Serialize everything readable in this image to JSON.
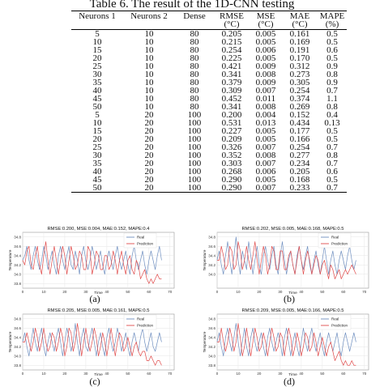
{
  "table": {
    "title": "Table 6. The result of the 1D-CNN testing",
    "headers": [
      "Neurons 1",
      "Neurons 2",
      "Dense",
      "RMSE",
      "MSE",
      "MAE",
      "MAPE"
    ],
    "units": [
      "",
      "",
      "",
      "(°C)",
      "(°C)",
      "(°C)",
      "(%)"
    ],
    "rows": [
      [
        "5",
        "10",
        "80",
        "0.205",
        "0.005",
        "0.161",
        "0.5"
      ],
      [
        "10",
        "10",
        "80",
        "0.215",
        "0.005",
        "0.169",
        "0.5"
      ],
      [
        "15",
        "10",
        "80",
        "0.254",
        "0.006",
        "0.191",
        "0.6"
      ],
      [
        "20",
        "10",
        "80",
        "0.225",
        "0.005",
        "0.170",
        "0.5"
      ],
      [
        "25",
        "10",
        "80",
        "0.421",
        "0.009",
        "0.312",
        "0.9"
      ],
      [
        "30",
        "10",
        "80",
        "0.341",
        "0.008",
        "0.273",
        "0.8"
      ],
      [
        "35",
        "10",
        "80",
        "0.379",
        "0.009",
        "0.305",
        "0.9"
      ],
      [
        "40",
        "10",
        "80",
        "0.309",
        "0.007",
        "0.254",
        "0.7"
      ],
      [
        "45",
        "10",
        "80",
        "0.452",
        "0.011",
        "0.374",
        "1.1"
      ],
      [
        "50",
        "10",
        "80",
        "0.341",
        "0.008",
        "0.269",
        "0.8"
      ],
      [
        "5",
        "20",
        "100",
        "0.200",
        "0.004",
        "0.152",
        "0.4"
      ],
      [
        "10",
        "20",
        "100",
        "0.531",
        "0.013",
        "0.434",
        "0.13"
      ],
      [
        "15",
        "20",
        "100",
        "0.227",
        "0.005",
        "0.177",
        "0.5"
      ],
      [
        "20",
        "20",
        "100",
        "0.209",
        "0.005",
        "0.166",
        "0.5"
      ],
      [
        "25",
        "20",
        "100",
        "0.326",
        "0.007",
        "0.254",
        "0.7"
      ],
      [
        "30",
        "20",
        "100",
        "0.352",
        "0.008",
        "0.277",
        "0.8"
      ],
      [
        "35",
        "20",
        "100",
        "0.303",
        "0.007",
        "0.234",
        "0.7"
      ],
      [
        "40",
        "20",
        "100",
        "0.268",
        "0.006",
        "0.205",
        "0.6"
      ],
      [
        "45",
        "20",
        "100",
        "0.290",
        "0.005",
        "0.168",
        "0.5"
      ],
      [
        "50",
        "20",
        "100",
        "0.290",
        "0.007",
        "0.233",
        "0.7"
      ]
    ]
  },
  "colors": {
    "real": "#6f8fc0",
    "prediction": "#e04a4a",
    "grid": "#e6e6e6",
    "frame": "#999999"
  },
  "chart_data": [
    {
      "type": "line",
      "label": "(a)",
      "title": "RMSE:0.200, MSE:0.004, MAE:0.152, MAPE:0.4",
      "xlabel": "Time",
      "ylabel": "Temperature",
      "xlim": [
        0,
        72
      ],
      "ylim": [
        33.7,
        34.9
      ],
      "xticks": [
        "0",
        "10",
        "20",
        "30",
        "40",
        "50",
        "60",
        "70"
      ],
      "yticks": [
        "33.8",
        "34.0",
        "34.2",
        "34.4",
        "34.6",
        "34.8"
      ],
      "legend": [
        "Real",
        "Prediction"
      ],
      "legend_position": "top-right",
      "series": [
        {
          "name": "Real",
          "values": [
            34.3,
            34.4,
            34.6,
            34.3,
            34.1,
            34.4,
            34.6,
            34.3,
            34.1,
            34.3,
            34.6,
            34.4,
            34.1,
            34.3,
            34.5,
            34.2,
            34.0,
            34.4,
            34.6,
            34.3,
            34.1,
            34.4,
            34.6,
            34.2,
            34.1,
            34.5,
            34.3,
            34.0,
            34.4,
            34.6,
            34.3,
            34.1,
            34.3,
            34.6,
            34.4,
            34.1,
            34.3,
            34.5,
            34.2,
            34.0,
            34.3,
            34.5,
            34.3,
            34.1,
            34.4,
            34.6,
            34.3,
            34.1,
            34.3,
            34.5,
            34.2,
            34.0,
            34.4,
            34.6,
            34.3,
            34.1,
            34.3,
            34.5,
            34.2,
            34.0,
            34.3,
            34.5,
            34.3,
            34.1,
            34.4,
            34.6,
            34.3
          ]
        },
        {
          "name": "Prediction",
          "values": [
            34.3,
            34.2,
            34.5,
            34.6,
            34.2,
            34.1,
            34.4,
            34.6,
            34.2,
            34.0,
            34.4,
            34.7,
            34.3,
            34.0,
            34.3,
            34.6,
            34.3,
            34.0,
            34.3,
            34.6,
            34.4,
            34.0,
            34.3,
            34.6,
            34.4,
            34.1,
            34.2,
            34.5,
            34.4,
            34.1,
            34.1,
            34.6,
            34.5,
            34.0,
            34.2,
            34.5,
            34.4,
            34.1,
            34.1,
            34.4,
            34.4,
            34.1,
            34.2,
            34.5,
            34.3,
            34.0,
            34.3,
            34.5,
            34.2,
            34.0,
            34.3,
            34.4,
            34.1,
            34.0,
            34.3,
            34.2,
            33.9,
            34.0,
            34.1,
            33.9,
            33.8,
            33.9,
            33.8,
            33.9,
            34.0,
            33.9,
            33.9
          ]
        }
      ]
    },
    {
      "type": "line",
      "label": "(b)",
      "title": "RMSE:0.202, MSE:0.005, MAE:0.168, MAPE:0.5",
      "xlabel": "Time",
      "ylabel": "Temperature",
      "xlim": [
        0,
        72
      ],
      "ylim": [
        33.7,
        34.9
      ],
      "xticks": [
        "0",
        "10",
        "20",
        "30",
        "40",
        "50",
        "60",
        "70"
      ],
      "yticks": [
        "34.0",
        "34.2",
        "34.4",
        "34.6",
        "34.8"
      ],
      "legend": [
        "Real",
        "Prediction"
      ],
      "legend_position": "top-right",
      "series": [
        {
          "name": "Real",
          "values": [
            34.3,
            34.5,
            34.2,
            34.0,
            34.4,
            34.7,
            34.3,
            34.0,
            34.4,
            34.8,
            34.3,
            34.0,
            34.5,
            34.3,
            34.1,
            34.7,
            34.4,
            34.0,
            34.3,
            34.6,
            34.2,
            34.0,
            34.4,
            34.6,
            34.3,
            34.1,
            34.4,
            34.6,
            34.2,
            34.0,
            34.4,
            34.7,
            34.3,
            34.0,
            34.3,
            34.5,
            34.2,
            34.0,
            34.4,
            34.6,
            34.3,
            34.1,
            34.4,
            34.6,
            34.2,
            34.0,
            34.3,
            34.5,
            34.2,
            34.0,
            34.3,
            34.6,
            34.3,
            34.0,
            34.3,
            34.5,
            34.2,
            34.0,
            34.3,
            34.5,
            34.3,
            34.1,
            34.4,
            34.6,
            34.3,
            34.1,
            34.3
          ]
        },
        {
          "name": "Prediction",
          "values": [
            34.3,
            34.3,
            34.6,
            34.4,
            34.1,
            34.2,
            34.6,
            34.5,
            34.1,
            34.2,
            34.7,
            34.5,
            34.1,
            34.3,
            34.6,
            34.3,
            34.1,
            34.4,
            34.7,
            34.3,
            34.0,
            34.3,
            34.6,
            34.4,
            34.0,
            34.2,
            34.6,
            34.5,
            34.1,
            34.1,
            34.5,
            34.5,
            34.1,
            34.1,
            34.4,
            34.5,
            34.2,
            34.0,
            34.3,
            34.6,
            34.3,
            34.0,
            34.3,
            34.5,
            34.3,
            34.0,
            34.2,
            34.4,
            34.3,
            34.0,
            34.2,
            34.3,
            34.1,
            33.9,
            34.2,
            34.1,
            33.9,
            34.0,
            34.1,
            33.9,
            34.0,
            34.1,
            34.0,
            34.1,
            34.2,
            34.1,
            34.0
          ]
        }
      ]
    },
    {
      "type": "line",
      "label": "(c)",
      "title": "RMSE:0.205, MSE:0.005, MAE:0.161, MAPE:0.5",
      "xlabel": "Time",
      "ylabel": "Temperature",
      "xlim": [
        0,
        72
      ],
      "ylim": [
        33.7,
        34.9
      ],
      "xticks": [
        "0",
        "10",
        "20",
        "30",
        "40",
        "50",
        "60",
        "70"
      ],
      "yticks": [
        "33.8",
        "34.0",
        "34.2",
        "34.4",
        "34.6",
        "34.8"
      ],
      "legend": [
        "Real",
        "Prediction"
      ],
      "legend_position": "top-right",
      "series": [
        {
          "name": "Real",
          "values": [
            34.3,
            34.5,
            34.2,
            34.0,
            34.3,
            34.6,
            34.3,
            34.1,
            34.4,
            34.6,
            34.2,
            34.0,
            34.3,
            34.5,
            34.3,
            34.1,
            34.4,
            34.6,
            34.3,
            34.0,
            34.3,
            34.6,
            34.4,
            34.1,
            34.3,
            34.7,
            34.3,
            34.0,
            34.4,
            34.6,
            34.2,
            34.1,
            34.4,
            34.6,
            34.3,
            34.0,
            34.3,
            34.5,
            34.2,
            34.0,
            34.4,
            34.6,
            34.3,
            34.1,
            34.3,
            34.6,
            34.4,
            34.1,
            34.3,
            34.5,
            34.2,
            34.0,
            34.3,
            34.5,
            34.3,
            34.1,
            34.4,
            34.6,
            34.3,
            34.1,
            34.3,
            34.5,
            34.2,
            34.1,
            34.3,
            34.5,
            34.3
          ]
        },
        {
          "name": "Prediction",
          "values": [
            34.3,
            34.3,
            34.5,
            34.3,
            34.1,
            34.3,
            34.6,
            34.4,
            34.1,
            34.3,
            34.6,
            34.3,
            34.1,
            34.2,
            34.5,
            34.4,
            34.1,
            34.3,
            34.6,
            34.4,
            34.0,
            34.2,
            34.6,
            34.5,
            34.1,
            34.3,
            34.7,
            34.4,
            34.0,
            34.3,
            34.6,
            34.3,
            34.1,
            34.3,
            34.6,
            34.4,
            34.0,
            34.2,
            34.5,
            34.3,
            34.0,
            34.3,
            34.6,
            34.3,
            34.0,
            34.3,
            34.5,
            34.4,
            34.1,
            34.2,
            34.4,
            34.2,
            34.0,
            34.2,
            34.3,
            34.1,
            34.0,
            34.1,
            34.1,
            33.9,
            33.9,
            34.0,
            33.9,
            33.8,
            33.9,
            33.9,
            33.8
          ]
        }
      ]
    },
    {
      "type": "line",
      "label": "(d)",
      "title": "RMSE:0.209, MSE:0.005, MAE:0.166, MAPE:0.5",
      "xlabel": "Time",
      "ylabel": "Temperature",
      "xlim": [
        0,
        72
      ],
      "ylim": [
        33.7,
        34.9
      ],
      "xticks": [
        "0",
        "10",
        "20",
        "30",
        "40",
        "50",
        "60",
        "70"
      ],
      "yticks": [
        "33.8",
        "34.0",
        "34.2",
        "34.4",
        "34.6",
        "34.8"
      ],
      "legend": [
        "Real",
        "Prediction"
      ],
      "legend_position": "top-right",
      "series": [
        {
          "name": "Real",
          "values": [
            34.3,
            34.5,
            34.2,
            34.0,
            34.4,
            34.6,
            34.3,
            34.1,
            34.4,
            34.7,
            34.3,
            34.0,
            34.3,
            34.6,
            34.2,
            34.0,
            34.4,
            34.6,
            34.3,
            34.1,
            34.3,
            34.5,
            34.2,
            34.0,
            34.4,
            34.6,
            34.3,
            34.1,
            34.3,
            34.5,
            34.3,
            34.0,
            34.4,
            34.6,
            34.3,
            34.0,
            34.3,
            34.5,
            34.2,
            34.0,
            34.3,
            34.6,
            34.3,
            34.1,
            34.4,
            34.6,
            34.3,
            34.1,
            34.3,
            34.5,
            34.2,
            34.0,
            34.3,
            34.5,
            34.3,
            34.1,
            34.3,
            34.5,
            34.2,
            34.0,
            34.3,
            34.5,
            34.3,
            34.1,
            34.3,
            34.5,
            34.3
          ]
        },
        {
          "name": "Prediction",
          "values": [
            34.3,
            34.3,
            34.6,
            34.3,
            34.1,
            34.3,
            34.6,
            34.4,
            34.1,
            34.3,
            34.7,
            34.4,
            34.0,
            34.2,
            34.6,
            34.3,
            34.0,
            34.3,
            34.6,
            34.4,
            34.1,
            34.2,
            34.5,
            34.3,
            34.0,
            34.3,
            34.6,
            34.4,
            34.1,
            34.2,
            34.5,
            34.4,
            34.0,
            34.3,
            34.6,
            34.4,
            34.0,
            34.2,
            34.5,
            34.3,
            34.0,
            34.2,
            34.5,
            34.4,
            34.1,
            34.2,
            34.5,
            34.3,
            34.0,
            34.2,
            34.4,
            34.2,
            34.0,
            34.2,
            34.3,
            34.1,
            33.9,
            34.0,
            34.1,
            33.9,
            33.8,
            33.9,
            33.8,
            33.8,
            33.9,
            33.8,
            33.8
          ]
        }
      ]
    }
  ]
}
